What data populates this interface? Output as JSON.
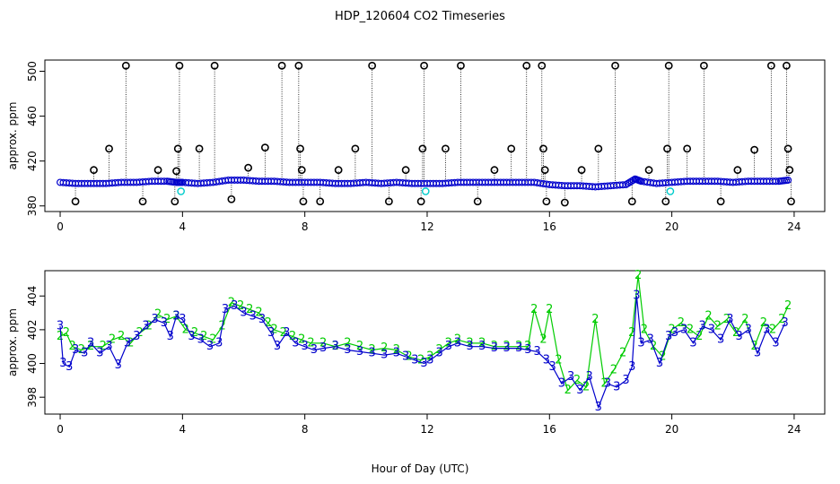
{
  "colors": {
    "blue": "#0000cc",
    "green": "#00cc00",
    "cyan": "#00cccc",
    "black": "#000000"
  },
  "chart_data": [
    {
      "type": "scatter",
      "title": "HDP_120604  CO2 Timeseries",
      "xlabel": "",
      "ylabel": "approx. ppm",
      "xlim": [
        -0.5,
        25
      ],
      "ylim": [
        375,
        510
      ],
      "x_ticks": [
        0,
        4,
        8,
        12,
        16,
        20,
        24
      ],
      "y_ticks": [
        380,
        420,
        460,
        500
      ],
      "baseline": [
        [
          0.0,
          401
        ],
        [
          0.5,
          400
        ],
        [
          1.0,
          400
        ],
        [
          1.5,
          400
        ],
        [
          2.0,
          401
        ],
        [
          2.5,
          401
        ],
        [
          3.0,
          402
        ],
        [
          3.5,
          402
        ],
        [
          3.8,
          401
        ],
        [
          4.0,
          401
        ],
        [
          4.5,
          400
        ],
        [
          5.0,
          401
        ],
        [
          5.5,
          403
        ],
        [
          6.0,
          403
        ],
        [
          6.5,
          402
        ],
        [
          7.0,
          402
        ],
        [
          7.5,
          401
        ],
        [
          8.0,
          401
        ],
        [
          8.5,
          401
        ],
        [
          9.0,
          400
        ],
        [
          9.5,
          400
        ],
        [
          10.0,
          401
        ],
        [
          10.5,
          400
        ],
        [
          11.0,
          401
        ],
        [
          11.5,
          400
        ],
        [
          12.0,
          400
        ],
        [
          12.5,
          400
        ],
        [
          13.0,
          401
        ],
        [
          13.5,
          401
        ],
        [
          14.0,
          401
        ],
        [
          14.5,
          401
        ],
        [
          15.0,
          401
        ],
        [
          15.5,
          401
        ],
        [
          16.0,
          399
        ],
        [
          16.5,
          398
        ],
        [
          17.0,
          398
        ],
        [
          17.5,
          397
        ],
        [
          18.0,
          398
        ],
        [
          18.5,
          399
        ],
        [
          18.8,
          404
        ],
        [
          19.0,
          402
        ],
        [
          19.5,
          400
        ],
        [
          20.0,
          401
        ],
        [
          20.5,
          402
        ],
        [
          21.0,
          402
        ],
        [
          21.5,
          402
        ],
        [
          22.0,
          401
        ],
        [
          22.5,
          402
        ],
        [
          23.0,
          402
        ],
        [
          23.5,
          402
        ],
        [
          23.8,
          403
        ]
      ],
      "spikes": [
        {
          "x": 0.5,
          "y": 384
        },
        {
          "x": 1.1,
          "y": 412
        },
        {
          "x": 1.6,
          "y": 431
        },
        {
          "x": 2.15,
          "y": 505
        },
        {
          "x": 2.7,
          "y": 384
        },
        {
          "x": 3.2,
          "y": 412
        },
        {
          "x": 3.75,
          "y": 384
        },
        {
          "x": 3.8,
          "y": 411
        },
        {
          "x": 3.85,
          "y": 431
        },
        {
          "x": 3.9,
          "y": 505
        },
        {
          "x": 4.55,
          "y": 431
        },
        {
          "x": 5.05,
          "y": 505
        },
        {
          "x": 5.6,
          "y": 386
        },
        {
          "x": 6.15,
          "y": 414
        },
        {
          "x": 6.7,
          "y": 432
        },
        {
          "x": 7.25,
          "y": 505
        },
        {
          "x": 7.8,
          "y": 505
        },
        {
          "x": 7.85,
          "y": 431
        },
        {
          "x": 7.9,
          "y": 412
        },
        {
          "x": 7.95,
          "y": 384
        },
        {
          "x": 8.5,
          "y": 384
        },
        {
          "x": 9.1,
          "y": 412
        },
        {
          "x": 9.65,
          "y": 431
        },
        {
          "x": 10.2,
          "y": 505
        },
        {
          "x": 10.75,
          "y": 384
        },
        {
          "x": 11.3,
          "y": 412
        },
        {
          "x": 11.8,
          "y": 384
        },
        {
          "x": 11.85,
          "y": 431
        },
        {
          "x": 11.9,
          "y": 505
        },
        {
          "x": 12.6,
          "y": 431
        },
        {
          "x": 13.1,
          "y": 505
        },
        {
          "x": 13.65,
          "y": 384
        },
        {
          "x": 14.2,
          "y": 412
        },
        {
          "x": 14.75,
          "y": 431
        },
        {
          "x": 15.25,
          "y": 505
        },
        {
          "x": 15.75,
          "y": 505
        },
        {
          "x": 15.8,
          "y": 431
        },
        {
          "x": 15.85,
          "y": 412
        },
        {
          "x": 15.9,
          "y": 384
        },
        {
          "x": 16.5,
          "y": 383
        },
        {
          "x": 17.05,
          "y": 412
        },
        {
          "x": 17.6,
          "y": 431
        },
        {
          "x": 18.15,
          "y": 505
        },
        {
          "x": 18.7,
          "y": 384
        },
        {
          "x": 19.25,
          "y": 412
        },
        {
          "x": 19.8,
          "y": 384
        },
        {
          "x": 19.85,
          "y": 431
        },
        {
          "x": 19.9,
          "y": 505
        },
        {
          "x": 20.5,
          "y": 431
        },
        {
          "x": 21.05,
          "y": 505
        },
        {
          "x": 21.6,
          "y": 384
        },
        {
          "x": 22.15,
          "y": 412
        },
        {
          "x": 22.7,
          "y": 430
        },
        {
          "x": 23.25,
          "y": 505
        },
        {
          "x": 23.75,
          "y": 505
        },
        {
          "x": 23.8,
          "y": 431
        },
        {
          "x": 23.85,
          "y": 412
        },
        {
          "x": 23.9,
          "y": 384
        }
      ],
      "cyan_points": [
        {
          "x": 3.95,
          "y": 393
        },
        {
          "x": 11.95,
          "y": 393
        },
        {
          "x": 19.95,
          "y": 393
        }
      ]
    },
    {
      "type": "line",
      "xlabel": "Hour of Day (UTC)",
      "ylabel": "approx. ppm",
      "xlim": [
        -0.5,
        25
      ],
      "ylim": [
        397,
        405.5
      ],
      "x_ticks": [
        0,
        4,
        8,
        12,
        16,
        20,
        24
      ],
      "y_ticks": [
        398,
        400,
        402,
        404
      ],
      "series": [
        {
          "name": "3",
          "values": [
            [
              0.0,
              402.2
            ],
            [
              0.1,
              400.0
            ],
            [
              0.3,
              399.8
            ],
            [
              0.5,
              400.8
            ],
            [
              0.8,
              400.6
            ],
            [
              1.0,
              401.2
            ],
            [
              1.3,
              400.6
            ],
            [
              1.6,
              401.0
            ],
            [
              1.9,
              399.9
            ],
            [
              2.2,
              401.2
            ],
            [
              2.5,
              401.6
            ],
            [
              2.8,
              402.2
            ],
            [
              3.1,
              402.6
            ],
            [
              3.4,
              402.4
            ],
            [
              3.6,
              401.6
            ],
            [
              3.8,
              402.8
            ],
            [
              4.0,
              402.6
            ],
            [
              4.3,
              401.6
            ],
            [
              4.6,
              401.4
            ],
            [
              4.9,
              401.0
            ],
            [
              5.2,
              401.2
            ],
            [
              5.4,
              403.2
            ],
            [
              5.7,
              403.4
            ],
            [
              6.0,
              403.0
            ],
            [
              6.3,
              402.8
            ],
            [
              6.6,
              402.6
            ],
            [
              6.9,
              401.8
            ],
            [
              7.1,
              401.0
            ],
            [
              7.4,
              401.8
            ],
            [
              7.7,
              401.2
            ],
            [
              8.0,
              401.0
            ],
            [
              8.3,
              400.8
            ],
            [
              8.6,
              400.9
            ],
            [
              9.0,
              401.0
            ],
            [
              9.4,
              400.8
            ],
            [
              9.8,
              400.7
            ],
            [
              10.2,
              400.6
            ],
            [
              10.6,
              400.5
            ],
            [
              11.0,
              400.6
            ],
            [
              11.3,
              400.4
            ],
            [
              11.6,
              400.2
            ],
            [
              11.9,
              400.0
            ],
            [
              12.1,
              400.2
            ],
            [
              12.4,
              400.6
            ],
            [
              12.7,
              401.0
            ],
            [
              13.0,
              401.2
            ],
            [
              13.4,
              401.0
            ],
            [
              13.8,
              401.0
            ],
            [
              14.2,
              400.9
            ],
            [
              14.6,
              400.9
            ],
            [
              15.0,
              400.9
            ],
            [
              15.3,
              400.8
            ],
            [
              15.6,
              400.7
            ],
            [
              15.9,
              400.2
            ],
            [
              16.1,
              399.8
            ],
            [
              16.4,
              398.8
            ],
            [
              16.7,
              399.2
            ],
            [
              17.0,
              398.4
            ],
            [
              17.3,
              399.2
            ],
            [
              17.6,
              397.4
            ],
            [
              17.9,
              398.8
            ],
            [
              18.2,
              398.6
            ],
            [
              18.5,
              399.0
            ],
            [
              18.7,
              399.8
            ],
            [
              18.85,
              404.0
            ],
            [
              19.0,
              401.2
            ],
            [
              19.3,
              401.4
            ],
            [
              19.6,
              400.0
            ],
            [
              19.9,
              401.6
            ],
            [
              20.1,
              401.8
            ],
            [
              20.4,
              402.0
            ],
            [
              20.7,
              401.2
            ],
            [
              21.0,
              402.2
            ],
            [
              21.3,
              402.0
            ],
            [
              21.6,
              401.4
            ],
            [
              21.9,
              402.6
            ],
            [
              22.2,
              401.6
            ],
            [
              22.5,
              402.0
            ],
            [
              22.8,
              400.6
            ],
            [
              23.1,
              402.0
            ],
            [
              23.4,
              401.2
            ],
            [
              23.7,
              402.4
            ]
          ]
        },
        {
          "name": "2",
          "values": [
            [
              0.0,
              401.6
            ],
            [
              0.2,
              401.8
            ],
            [
              0.4,
              401.0
            ],
            [
              0.7,
              400.8
            ],
            [
              1.0,
              401.0
            ],
            [
              1.4,
              401.0
            ],
            [
              1.7,
              401.4
            ],
            [
              2.0,
              401.6
            ],
            [
              2.3,
              401.2
            ],
            [
              2.6,
              401.8
            ],
            [
              2.9,
              402.2
            ],
            [
              3.2,
              402.9
            ],
            [
              3.5,
              402.6
            ],
            [
              3.8,
              402.8
            ],
            [
              4.1,
              402.0
            ],
            [
              4.4,
              401.8
            ],
            [
              4.7,
              401.6
            ],
            [
              5.0,
              401.4
            ],
            [
              5.3,
              402.2
            ],
            [
              5.6,
              403.6
            ],
            [
              5.9,
              403.4
            ],
            [
              6.2,
              403.2
            ],
            [
              6.5,
              403.0
            ],
            [
              6.8,
              402.4
            ],
            [
              7.0,
              402.0
            ],
            [
              7.3,
              401.8
            ],
            [
              7.6,
              401.6
            ],
            [
              7.9,
              401.4
            ],
            [
              8.2,
              401.2
            ],
            [
              8.6,
              401.2
            ],
            [
              9.0,
              401.0
            ],
            [
              9.4,
              401.2
            ],
            [
              9.8,
              401.0
            ],
            [
              10.2,
              400.8
            ],
            [
              10.6,
              400.9
            ],
            [
              11.0,
              400.8
            ],
            [
              11.4,
              400.4
            ],
            [
              11.8,
              400.2
            ],
            [
              12.1,
              400.4
            ],
            [
              12.4,
              400.8
            ],
            [
              12.7,
              401.2
            ],
            [
              13.0,
              401.4
            ],
            [
              13.4,
              401.2
            ],
            [
              13.8,
              401.2
            ],
            [
              14.2,
              401.0
            ],
            [
              14.6,
              401.0
            ],
            [
              15.0,
              401.0
            ],
            [
              15.3,
              401.0
            ],
            [
              15.5,
              403.2
            ],
            [
              15.8,
              401.4
            ],
            [
              16.0,
              403.2
            ],
            [
              16.3,
              400.2
            ],
            [
              16.6,
              398.4
            ],
            [
              16.9,
              399.0
            ],
            [
              17.2,
              398.6
            ],
            [
              17.5,
              402.6
            ],
            [
              17.8,
              398.8
            ],
            [
              18.1,
              399.6
            ],
            [
              18.4,
              400.6
            ],
            [
              18.7,
              401.8
            ],
            [
              18.9,
              405.2
            ],
            [
              19.1,
              402.0
            ],
            [
              19.4,
              401.0
            ],
            [
              19.7,
              400.4
            ],
            [
              20.0,
              402.0
            ],
            [
              20.3,
              402.4
            ],
            [
              20.6,
              402.0
            ],
            [
              20.9,
              401.6
            ],
            [
              21.2,
              402.8
            ],
            [
              21.5,
              402.2
            ],
            [
              21.8,
              402.6
            ],
            [
              22.1,
              401.8
            ],
            [
              22.4,
              402.6
            ],
            [
              22.7,
              401.0
            ],
            [
              23.0,
              402.4
            ],
            [
              23.3,
              402.0
            ],
            [
              23.6,
              402.6
            ],
            [
              23.8,
              403.4
            ]
          ]
        }
      ]
    }
  ]
}
